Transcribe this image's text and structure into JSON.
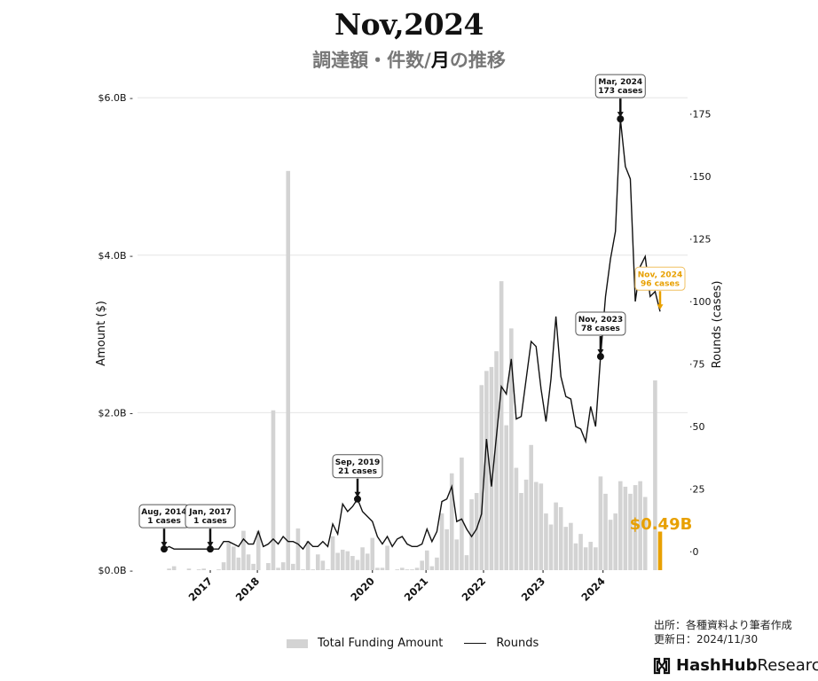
{
  "header": {
    "title": "Nov,2024",
    "subtitle_part1": "調達額・件数/",
    "subtitle_part2": "月",
    "subtitle_part3": "の推移"
  },
  "chart_data": {
    "type": "bar",
    "title": "Nov,2024",
    "subtitle": "調達額・件数/月の推移",
    "ylabel": "Amount ($)",
    "y2label": "Rounds (cases)",
    "ylim": [
      0,
      6.0
    ],
    "y2lim": [
      -7.5,
      182
    ],
    "yticks": [
      {
        "v": 0,
        "label": "$0.0B"
      },
      {
        "v": 2,
        "label": "$2.0B"
      },
      {
        "v": 4,
        "label": "$4.0B"
      },
      {
        "v": 6,
        "label": "$6.0B"
      }
    ],
    "y2ticks": [
      0,
      25,
      50,
      75,
      100,
      125,
      150,
      175
    ],
    "xticks": [
      {
        "label": "2017",
        "index": 9.3
      },
      {
        "label": "2018",
        "index": 18.8
      },
      {
        "label": "2020",
        "index": 42
      },
      {
        "label": "2021",
        "index": 52.8
      },
      {
        "label": "2022",
        "index": 64.4
      },
      {
        "label": "2023",
        "index": 76.4
      },
      {
        "label": "2024",
        "index": 88.5
      }
    ],
    "grid": true,
    "legend_placement": "bottom-center",
    "series": [
      {
        "name": "Total Funding Amount",
        "type": "bar",
        "unit": "billion USD",
        "color": "#d3d3d3",
        "highlight_color": "#E8A000",
        "values": [
          0,
          0.02,
          0.05,
          0,
          0,
          0.02,
          0,
          0.01,
          0.02,
          0,
          0,
          0.01,
          0.1,
          0.35,
          0.3,
          0.16,
          0.5,
          0.2,
          0.08,
          0.5,
          0,
          0.09,
          2.03,
          0.03,
          0.1,
          5.07,
          0.08,
          0.53,
          0.01,
          0.37,
          0.01,
          0.2,
          0.12,
          0.01,
          0.43,
          0.22,
          0.26,
          0.24,
          0.18,
          0.13,
          0.29,
          0.21,
          0.41,
          0.03,
          0.03,
          0.31,
          0,
          0.01,
          0.03,
          0.01,
          0.01,
          0.03,
          0.12,
          0.25,
          0.05,
          0.16,
          0.72,
          0.52,
          1.23,
          0.39,
          1.43,
          0.19,
          0.9,
          0.98,
          2.35,
          2.53,
          2.58,
          2.78,
          3.67,
          1.84,
          3.07,
          1.3,
          0.98,
          1.15,
          1.59,
          1.12,
          1.1,
          0.72,
          0.58,
          0.86,
          0.8,
          0.55,
          0.6,
          0.34,
          0.46,
          0.29,
          0.36,
          0.29,
          1.19,
          0.97,
          0.64,
          0.72,
          1.13,
          1.06,
          0.97,
          1.08,
          1.13,
          0.93,
          0,
          2.41,
          0.49
        ]
      },
      {
        "name": "Rounds",
        "type": "line",
        "unit": "cases",
        "color": "#111111",
        "values": [
          1,
          2,
          1,
          1,
          1,
          1,
          1,
          1,
          1,
          1,
          1,
          1,
          4,
          4,
          3,
          2,
          5,
          3,
          3,
          8,
          2,
          3,
          5,
          3,
          6,
          4,
          4,
          3,
          1,
          4,
          2,
          2,
          4,
          2,
          11,
          7,
          19,
          16,
          18,
          21,
          16,
          14,
          12,
          6,
          3,
          6,
          2,
          5,
          6,
          3,
          2,
          2,
          3,
          9,
          4,
          8,
          20,
          21,
          26,
          12,
          13,
          9,
          6,
          9,
          15,
          45,
          26,
          46,
          66,
          63,
          77,
          53,
          54,
          69,
          84,
          82,
          65,
          52,
          69,
          94,
          70,
          62,
          61,
          50,
          49,
          44,
          58,
          50,
          78,
          102,
          117,
          128,
          173,
          154,
          149,
          100,
          114,
          118,
          102,
          104,
          96
        ]
      }
    ],
    "annotations": [
      {
        "index": 0,
        "label": "Aug, 2014",
        "cases": "1 cases",
        "color": "#111111"
      },
      {
        "index": 9.3,
        "label": "Jan, 2017",
        "cases": "1 cases",
        "color": "#111111"
      },
      {
        "index": 39,
        "label": "Sep, 2019",
        "cases": "21 cases",
        "color": "#111111"
      },
      {
        "index": 88,
        "label": "Nov, 2023",
        "cases": "78 cases",
        "color": "#111111"
      },
      {
        "index": 92,
        "label": "Mar, 2024",
        "cases": "173 cases",
        "color": "#111111"
      },
      {
        "index": 100,
        "label": "Nov, 2024",
        "cases": "96 cases",
        "color": "#E8A000"
      }
    ],
    "latest_amount_label": "$0.49B"
  },
  "legend": {
    "amount_label": "Total Funding Amount",
    "rounds_label": "Rounds"
  },
  "footer": {
    "source": "出所：各種資料より筆者作成",
    "updated": "更新日：2024/11/30"
  },
  "logo": {
    "brand_bold": "HashHub",
    "brand_light": "Research"
  }
}
